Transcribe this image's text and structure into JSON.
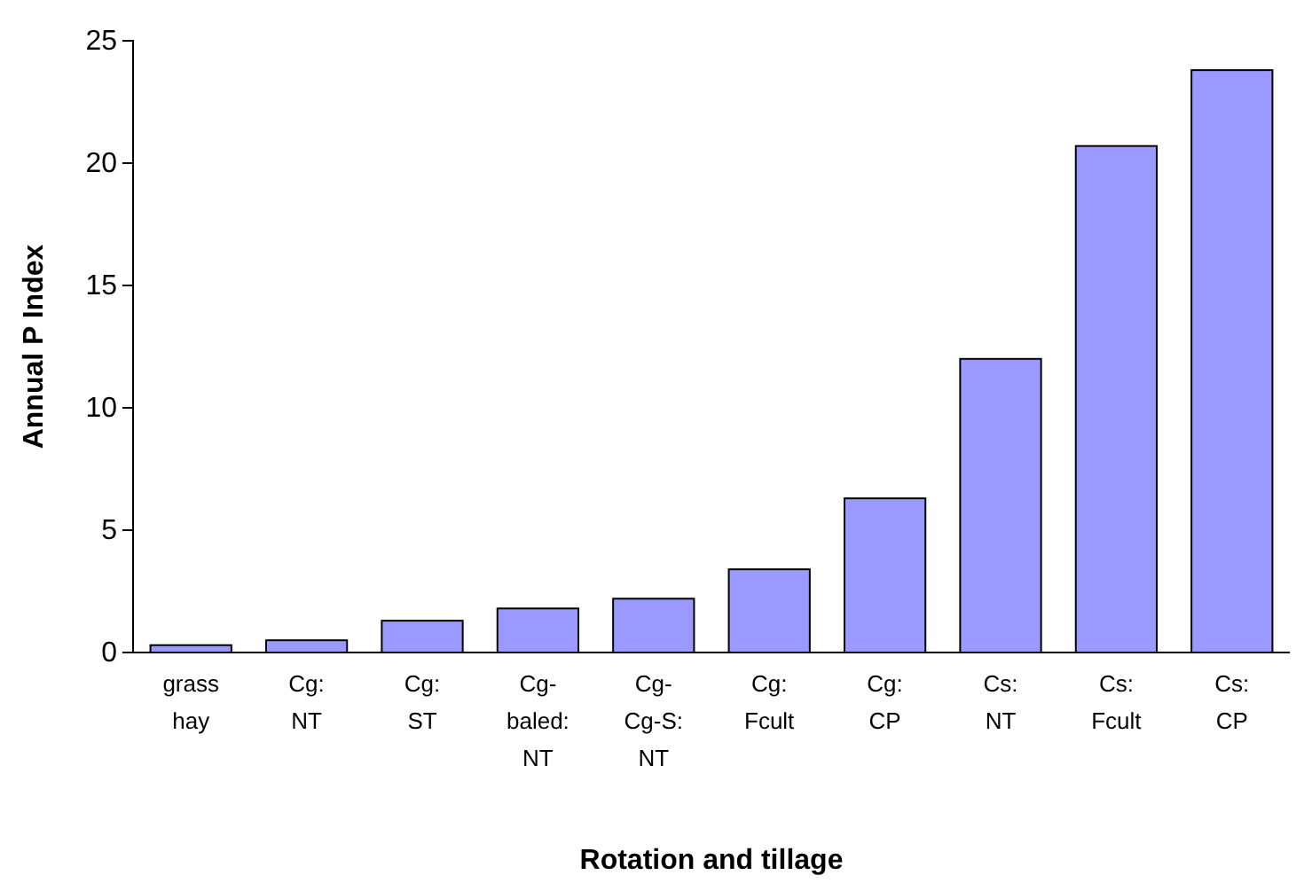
{
  "chart_data": {
    "type": "bar",
    "xlabel": "Rotation and tillage",
    "ylabel": "Annual P Index",
    "categories": [
      "grass hay",
      "Cg: NT",
      "Cg: ST",
      "Cg-baled: NT",
      "Cg-Cg-S: NT",
      "Cg: Fcult",
      "Cg: CP",
      "Cs: NT",
      "Cs: Fcult",
      "Cs: CP"
    ],
    "values": [
      0.3,
      0.5,
      1.3,
      1.8,
      2.2,
      3.4,
      6.3,
      12.0,
      20.7,
      23.8
    ],
    "color": "#9999ff",
    "ylim": [
      0,
      25
    ],
    "yticks": [
      0,
      5,
      10,
      15,
      20,
      25
    ],
    "grid": false
  }
}
